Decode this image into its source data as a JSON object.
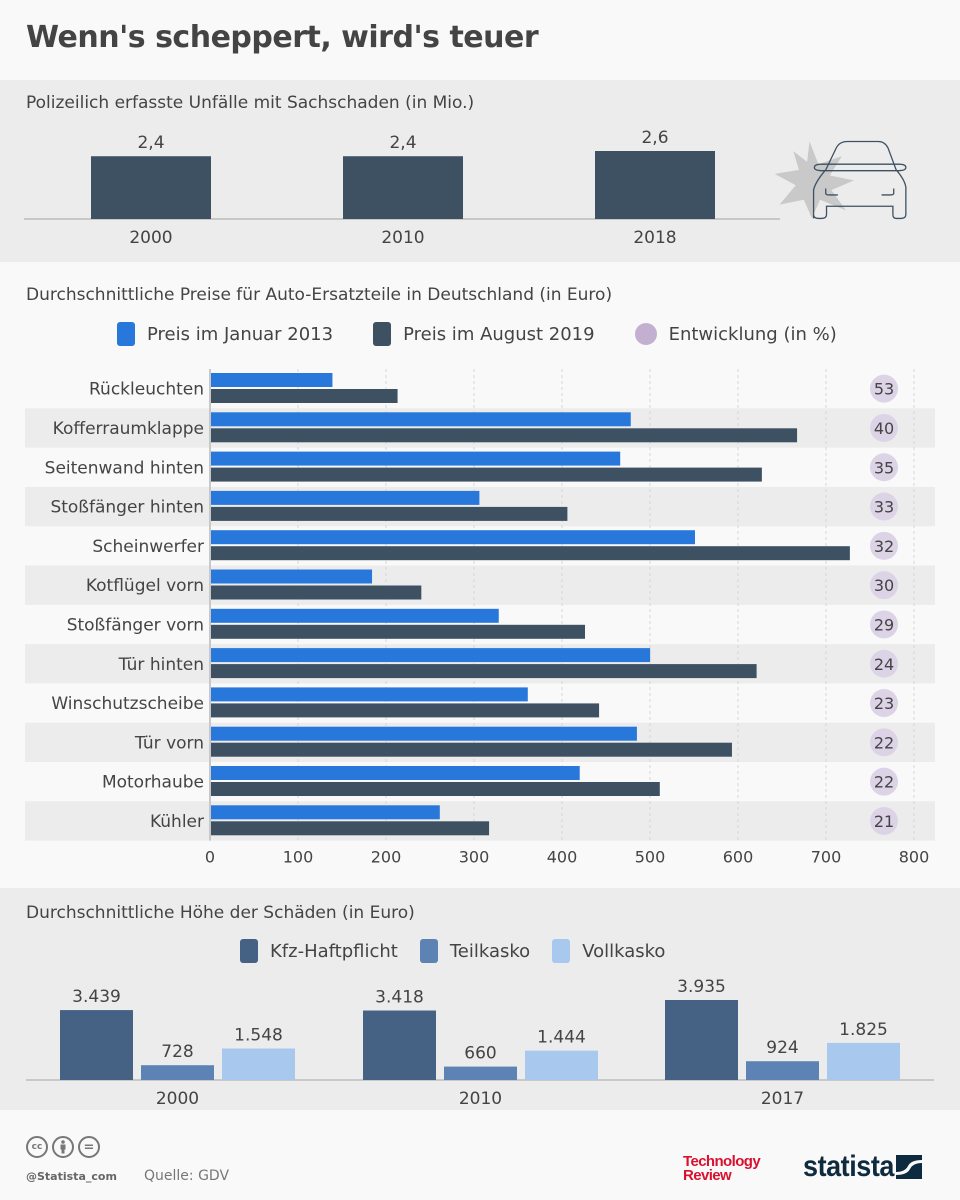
{
  "title": "Wenn's scheppert, wird's teuer",
  "colors": {
    "bar_dark": "#3d5163",
    "price_2013": "#2878dc",
    "price_2019": "#3d5163",
    "bubble": "#ddd3e6",
    "legend_bubble": "#c3b0d0",
    "kfz": "#456284",
    "teil": "#5d83b5",
    "voll": "#a9c8ee"
  },
  "icons": [
    "car-crash-icon",
    "cc-icon",
    "by-icon",
    "nd-icon",
    "statista-logo-icon"
  ],
  "chart_data": [
    {
      "type": "bar",
      "title": "Polizeilich erfasste Unfälle mit Sachschaden (in Mio.)",
      "categories": [
        "2000",
        "2010",
        "2018"
      ],
      "values": [
        2.4,
        2.4,
        2.6
      ],
      "value_labels": [
        "2,4",
        "2,4",
        "2,6"
      ],
      "ylim": [
        0,
        2.6
      ],
      "xlabel": "",
      "ylabel": "",
      "grid": false
    },
    {
      "type": "bar",
      "orientation": "horizontal",
      "title": "Durchschnittliche Preise für Auto-Ersatzteile in Deutschland (in Euro)",
      "legend": [
        "Preis im Januar 2013",
        "Preis im August 2019",
        "Entwicklung (in %)"
      ],
      "legend_position": "top",
      "categories": [
        "Rückleuchten",
        "Kofferraumklappe",
        "Seitenwand hinten",
        "Stoßfänger hinten",
        "Scheinwerfer",
        "Kotflügel vorn",
        "Stoßfänger vorn",
        "Tür hinten",
        "Winschutzscheibe",
        "Tür vorn",
        "Motorhaube",
        "Kühler"
      ],
      "series": [
        {
          "name": "Preis im Januar 2013",
          "values": [
            138,
            477,
            465,
            305,
            550,
            183,
            327,
            499,
            360,
            484,
            419,
            260
          ]
        },
        {
          "name": "Preis im August 2019",
          "values": [
            212,
            666,
            626,
            405,
            726,
            239,
            425,
            620,
            441,
            592,
            510,
            316
          ]
        }
      ],
      "change_percent": [
        "53",
        "40",
        "35",
        "33",
        "32",
        "30",
        "29",
        "24",
        "23",
        "22",
        "22",
        "21"
      ],
      "xlim": [
        0,
        800
      ],
      "xticks": [
        "0",
        "100",
        "200",
        "300",
        "400",
        "500",
        "600",
        "700",
        "800"
      ],
      "grid": true,
      "xlabel": "",
      "ylabel": ""
    },
    {
      "type": "bar",
      "title": "Durchschnittliche Höhe der Schäden (in Euro)",
      "legend": [
        "Kfz-Haftpflicht",
        "Teilkasko",
        "Vollkasko"
      ],
      "legend_position": "top",
      "categories": [
        "2000",
        "2010",
        "2017"
      ],
      "series": [
        {
          "name": "Kfz-Haftpflicht",
          "values": [
            3439,
            3418,
            3935
          ],
          "labels": [
            "3.439",
            "3.418",
            "3.935"
          ]
        },
        {
          "name": "Teilkasko",
          "values": [
            728,
            660,
            924
          ],
          "labels": [
            "728",
            "660",
            "924"
          ]
        },
        {
          "name": "Vollkasko",
          "values": [
            1548,
            1444,
            1825
          ],
          "labels": [
            "1.548",
            "1.444",
            "1.825"
          ]
        }
      ],
      "ylim": [
        0,
        3935
      ],
      "xlabel": "",
      "ylabel": "",
      "grid": false
    }
  ],
  "footer": {
    "cc_labels": [
      "cc",
      "=",
      ""
    ],
    "handle": "@Statista_com",
    "source": "Quelle: GDV",
    "tr_logo_line1": "Technology",
    "tr_logo_line2": "Review",
    "statista_logo": "statista"
  }
}
